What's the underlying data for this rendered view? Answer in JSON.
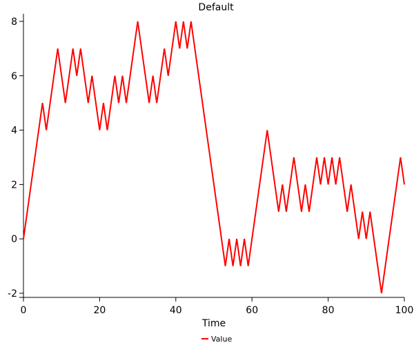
{
  "chart_data": {
    "type": "line",
    "title": "Default",
    "xlabel": "Time",
    "ylabel": "",
    "xlim": [
      0,
      100
    ],
    "ylim": [
      -2,
      8
    ],
    "xticks": [
      0,
      20,
      40,
      60,
      80,
      100
    ],
    "yticks": [
      -2,
      0,
      2,
      4,
      6,
      8
    ],
    "grid": false,
    "legend_position": "bottom-center",
    "series": [
      {
        "name": "Value",
        "color": "#ff0000",
        "x": [
          0,
          1,
          2,
          3,
          4,
          5,
          6,
          7,
          8,
          9,
          10,
          11,
          12,
          13,
          14,
          15,
          16,
          17,
          18,
          19,
          20,
          21,
          22,
          23,
          24,
          25,
          26,
          27,
          28,
          29,
          30,
          31,
          32,
          33,
          34,
          35,
          36,
          37,
          38,
          39,
          40,
          41,
          42,
          43,
          44,
          45,
          46,
          47,
          48,
          49,
          50,
          51,
          52,
          53,
          54,
          55,
          56,
          57,
          58,
          59,
          60,
          61,
          62,
          63,
          64,
          65,
          66,
          67,
          68,
          69,
          70,
          71,
          72,
          73,
          74,
          75,
          76,
          77,
          78,
          79,
          80,
          81,
          82,
          83,
          84,
          85,
          86,
          87,
          88,
          89,
          90,
          91,
          92,
          93,
          94,
          95,
          96,
          97,
          98,
          99,
          100
        ],
        "y": [
          0,
          1,
          2,
          3,
          4,
          5,
          4,
          5,
          6,
          7,
          6,
          5,
          6,
          7,
          6,
          7,
          6,
          5,
          6,
          5,
          4,
          5,
          4,
          5,
          6,
          5,
          6,
          5,
          6,
          7,
          8,
          7,
          6,
          5,
          6,
          5,
          6,
          7,
          6,
          7,
          8,
          7,
          8,
          7,
          8,
          7,
          6,
          5,
          4,
          3,
          2,
          1,
          0,
          -1,
          0,
          -1,
          0,
          -1,
          0,
          -1,
          0,
          1,
          2,
          3,
          4,
          3,
          2,
          1,
          2,
          1,
          2,
          3,
          2,
          1,
          2,
          1,
          2,
          3,
          2,
          3,
          2,
          3,
          2,
          3,
          2,
          1,
          2,
          1,
          0,
          1,
          0,
          1,
          0,
          -1,
          -2,
          -1,
          0,
          1,
          2,
          3,
          2
        ]
      }
    ]
  }
}
